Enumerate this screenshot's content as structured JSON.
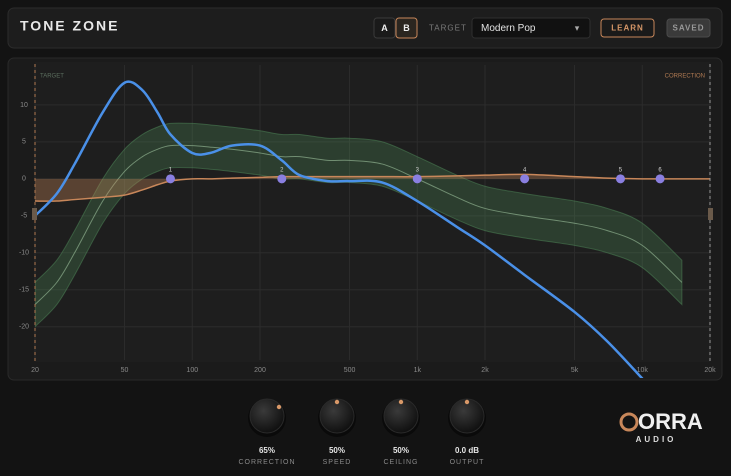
{
  "header": {
    "title": "TONE ZONE",
    "ab": [
      "A",
      "B"
    ],
    "target_label": "TARGET",
    "target_value": "Modern Pop",
    "dropdown_arrow": "▾",
    "learn": "LEARN",
    "saved": "SAVED"
  },
  "chart_data": {
    "type": "line",
    "corner_labels": {
      "left": "TARGET",
      "right": "CORRECTION"
    },
    "x": [
      20,
      25,
      30,
      40,
      50,
      60,
      70,
      80,
      100,
      120,
      150,
      200,
      250,
      300,
      400,
      500,
      700,
      1000,
      1500,
      2000,
      3000,
      5000,
      7000,
      10000,
      15000,
      20000
    ],
    "log_x": true,
    "xlim": [
      20,
      20000
    ],
    "ylim": [
      -24.5,
      15.4
    ],
    "xticks": [
      20,
      50,
      100,
      200,
      500,
      {
        "value": 1000,
        "label": "1k"
      },
      {
        "value": 2000,
        "label": "2k"
      },
      {
        "value": 5000,
        "label": "5k"
      },
      {
        "value": 10000,
        "label": "10k"
      },
      {
        "value": 20000,
        "label": "20k"
      }
    ],
    "yticks": [
      10,
      5,
      0,
      -5,
      -10,
      -15,
      -20
    ],
    "grid": true,
    "series": [
      {
        "style": "fill",
        "color": "#c8875a",
        "values": [
          -3,
          -3,
          -2.8,
          -2.5,
          -2.2,
          -1.5,
          -0.8,
          -0.3,
          0,
          0,
          0.1,
          0.2,
          0.3,
          0.3,
          0.3,
          0.3,
          0.3,
          0.3,
          0.4,
          0.5,
          0.6,
          0.3,
          0.1,
          0,
          0,
          0
        ]
      },
      {
        "style": "band",
        "color": "#4f8a5a",
        "tolerance": 3,
        "values": [
          -17,
          -14,
          -10,
          -3,
          1,
          3,
          4,
          4.5,
          4.5,
          4.3,
          4,
          3.5,
          3,
          3,
          2.5,
          2.5,
          2,
          0,
          -2.5,
          -4,
          -5,
          -6,
          -7,
          -9,
          -14,
          null
        ]
      },
      {
        "style": "line",
        "color": "#4a90e8",
        "values": [
          -5,
          -2,
          2,
          9,
          13,
          12,
          9,
          6,
          3.5,
          3.5,
          4.5,
          4.5,
          2.5,
          0.5,
          -0.3,
          -0.3,
          -0.5,
          -3,
          -6.5,
          -9,
          -13,
          -18,
          -22,
          -27,
          null,
          null
        ]
      }
    ],
    "nodes": {
      "color": "#8a7fe0",
      "labels": [
        "1",
        "2",
        "3",
        "4",
        "5",
        "6"
      ],
      "x": [
        80,
        250,
        1000,
        3000,
        8000,
        12000
      ],
      "values": [
        0,
        0,
        0,
        0,
        0,
        0
      ]
    }
  },
  "controls": [
    {
      "value": "65%",
      "label": "CORRECTION"
    },
    {
      "value": "50%",
      "label": "SPEED"
    },
    {
      "value": "50%",
      "label": "CEILING"
    },
    {
      "value": "0.0 dB",
      "label": "OUTPUT"
    }
  ],
  "logo": {
    "name": "ORRA",
    "sub": "AUDIO"
  }
}
